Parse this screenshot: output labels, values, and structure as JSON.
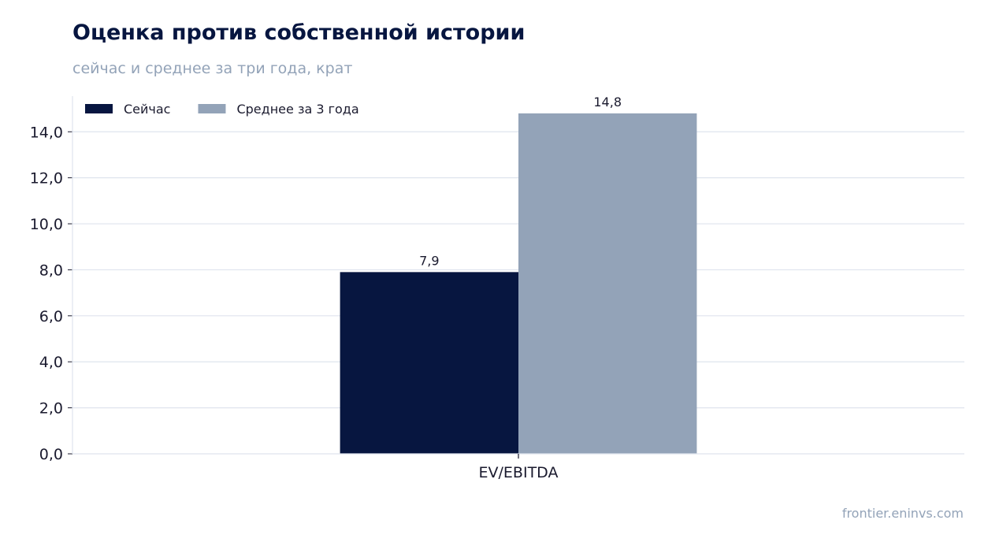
{
  "title": "Оценка против собственной истории",
  "subtitle": "сейчас и среднее за три года, крат",
  "source": "frontier.eninvs.com",
  "colors": {
    "now": "#071640",
    "avg": "#93a3b8",
    "grid": "#dfe4ee",
    "axis": "#dfe4ee",
    "text": "#1a1a2e"
  },
  "chart_data": {
    "type": "bar",
    "categories": [
      "EV/EBITDA"
    ],
    "series": [
      {
        "name": "Сейчас",
        "values": [
          7.9
        ],
        "labels": [
          "7,9"
        ],
        "color": "#071640"
      },
      {
        "name": "Среднее за 3 года",
        "values": [
          14.8
        ],
        "labels": [
          "14,8"
        ],
        "color": "#93a3b8"
      }
    ],
    "yticks": [
      0,
      2,
      4,
      6,
      8,
      10,
      12,
      14
    ],
    "ytick_labels": [
      "0,0",
      "2,0",
      "4,0",
      "6,0",
      "8,0",
      "10,0",
      "12,0",
      "14,0"
    ],
    "ylim": [
      0,
      15.55
    ],
    "grid": true,
    "legend": "top-left"
  }
}
